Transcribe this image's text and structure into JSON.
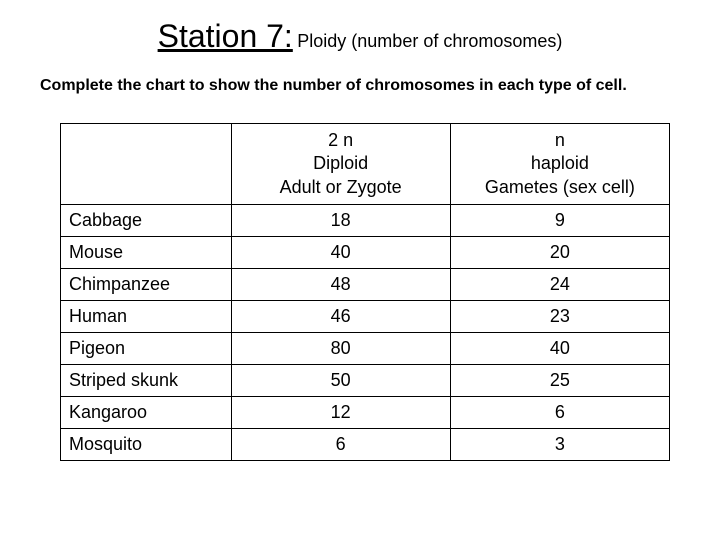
{
  "title": {
    "main": "Station 7:",
    "sub": "Ploidy (number of chromosomes)"
  },
  "instruction": "Complete the chart to show the number of chromosomes in each type of cell.",
  "table": {
    "headers": {
      "col1": "",
      "col2_l1": "2 n",
      "col2_l2": "Diploid",
      "col2_l3": "Adult or Zygote",
      "col3_l1": "n",
      "col3_l2": "haploid",
      "col3_l3": "Gametes (sex cell)"
    },
    "rows": [
      {
        "species": "Cabbage",
        "diploid": "18",
        "haploid": "9"
      },
      {
        "species": "Mouse",
        "diploid": "40",
        "haploid": "20"
      },
      {
        "species": "Chimpanzee",
        "diploid": "48",
        "haploid": "24"
      },
      {
        "species": "Human",
        "diploid": "46",
        "haploid": "23"
      },
      {
        "species": "Pigeon",
        "diploid": "80",
        "haploid": "40"
      },
      {
        "species": "Striped skunk",
        "diploid": "50",
        "haploid": "25"
      },
      {
        "species": "Kangaroo",
        "diploid": "12",
        "haploid": "6"
      },
      {
        "species": "Mosquito",
        "diploid": "6",
        "haploid": "3"
      }
    ]
  },
  "style": {
    "background_color": "#ffffff",
    "text_color": "#000000",
    "border_color": "#000000",
    "title_fontsize_main": 32,
    "title_fontsize_sub": 18,
    "instruction_fontsize": 16,
    "cell_fontsize": 18,
    "font_family": "Arial",
    "column_widths_pct": [
      28,
      36,
      36
    ]
  }
}
